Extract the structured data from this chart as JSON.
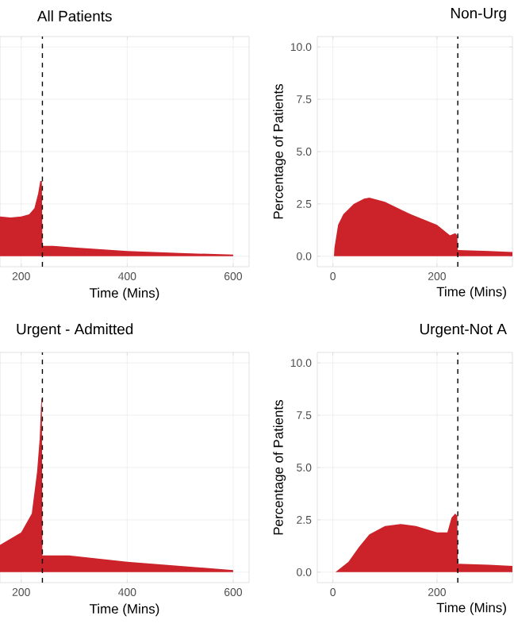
{
  "chart_data": [
    {
      "type": "area",
      "title": "All Patients",
      "xlabel": "Time (Mins)",
      "color": "#cc2229",
      "grid": true,
      "tick_labels": "x",
      "x": [
        160,
        180,
        200,
        215,
        225,
        232,
        236,
        239,
        240,
        260,
        300,
        400,
        500,
        600
      ],
      "values": [
        1.9,
        1.85,
        1.9,
        2.0,
        2.3,
        3.0,
        3.6,
        3.6,
        0.5,
        0.5,
        0.42,
        0.25,
        0.15,
        0.08
      ],
      "xlim": [
        160,
        630
      ],
      "ylim": [
        -0.5,
        10.5
      ],
      "xticks": [
        200,
        400,
        600
      ],
      "yticks": [
        {
          "value": 0,
          "label": null
        },
        {
          "value": 2.5,
          "label": null
        },
        {
          "value": 5,
          "label": null
        },
        {
          "value": 7.5,
          "label": null
        },
        {
          "value": 10,
          "label": null
        }
      ],
      "ref_lines": [
        {
          "axis": "x",
          "value": 240,
          "line_style": "dashed"
        }
      ]
    },
    {
      "type": "area",
      "title": "Non-Urg",
      "xlabel": "Time (Mins)",
      "ylabel": "Percentage of Patients",
      "color": "#cc2229",
      "grid": true,
      "x": [
        2,
        3,
        10,
        20,
        40,
        60,
        70,
        100,
        150,
        200,
        225,
        235,
        239,
        240,
        300,
        345
      ],
      "values": [
        0,
        0.4,
        1.5,
        2.0,
        2.5,
        2.75,
        2.8,
        2.6,
        2.0,
        1.5,
        1.0,
        1.1,
        1.0,
        0.3,
        0.25,
        0.2
      ],
      "xlim": [
        -30,
        345
      ],
      "ylim": [
        -0.5,
        10.5
      ],
      "xticks": [
        0,
        200
      ],
      "yticks": [
        {
          "value": 0,
          "label": "0.0"
        },
        {
          "value": 2.5,
          "label": "2.5"
        },
        {
          "value": 5,
          "label": "5.0"
        },
        {
          "value": 7.5,
          "label": "7.5"
        },
        {
          "value": 10,
          "label": "10.0"
        }
      ],
      "ref_lines": [
        {
          "axis": "x",
          "value": 240,
          "line_style": "dashed"
        }
      ]
    },
    {
      "type": "area",
      "title": "Urgent - Admitted",
      "xlabel": "Time (Mins)",
      "color": "#cc2229",
      "grid": true,
      "tick_labels": "x",
      "x": [
        160,
        200,
        220,
        230,
        235,
        238,
        239,
        240,
        290,
        400,
        500,
        600
      ],
      "values": [
        1.3,
        1.9,
        2.8,
        4.8,
        6.4,
        8.3,
        8.3,
        0.8,
        0.8,
        0.5,
        0.3,
        0.1
      ],
      "xlim": [
        160,
        630
      ],
      "ylim": [
        -0.5,
        10.5
      ],
      "xticks": [
        200,
        400,
        600
      ],
      "yticks": [
        {
          "value": 0,
          "label": null
        },
        {
          "value": 2.5,
          "label": null
        },
        {
          "value": 5,
          "label": null
        },
        {
          "value": 7.5,
          "label": null
        },
        {
          "value": 10,
          "label": null
        }
      ],
      "ref_lines": [
        {
          "axis": "x",
          "value": 240,
          "line_style": "dashed"
        }
      ]
    },
    {
      "type": "area",
      "title": "Urgent-Not A",
      "xlabel": "Time (Mins)",
      "ylabel": "Percentage of Patients",
      "color": "#cc2229",
      "grid": true,
      "x": [
        5,
        30,
        50,
        70,
        100,
        130,
        160,
        180,
        200,
        220,
        228,
        235,
        239,
        240,
        300,
        345
      ],
      "values": [
        0,
        0.5,
        1.2,
        1.8,
        2.2,
        2.3,
        2.2,
        2.05,
        1.9,
        1.9,
        2.6,
        2.8,
        2.7,
        0.4,
        0.35,
        0.3
      ],
      "xlim": [
        -30,
        345
      ],
      "ylim": [
        -0.5,
        10.5
      ],
      "xticks": [
        0,
        200
      ],
      "yticks": [
        {
          "value": 0,
          "label": "0.0"
        },
        {
          "value": 2.5,
          "label": "2.5"
        },
        {
          "value": 5,
          "label": "5.0"
        },
        {
          "value": 7.5,
          "label": "7.5"
        },
        {
          "value": 10,
          "label": "10.0"
        }
      ],
      "ref_lines": [
        {
          "axis": "x",
          "value": 240,
          "line_style": "dashed"
        }
      ]
    }
  ]
}
